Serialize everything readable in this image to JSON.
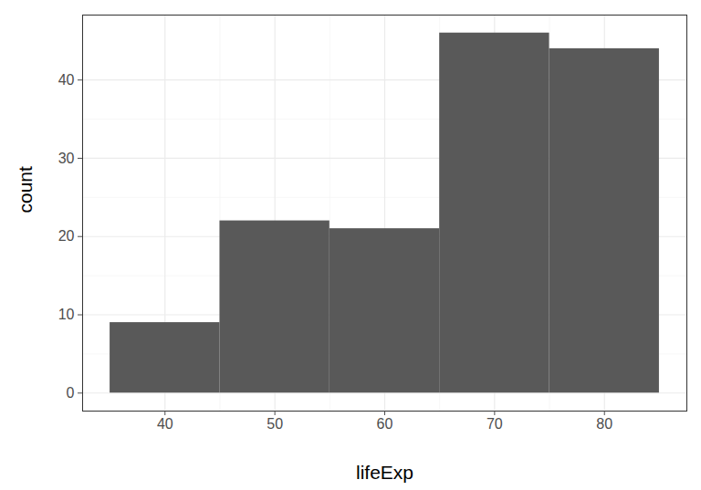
{
  "chart_data": {
    "type": "histogram",
    "bins": [
      35,
      45,
      55,
      65,
      75,
      85
    ],
    "values": [
      9,
      22,
      21,
      46,
      44
    ],
    "x_label": "lifeExp",
    "y_label": "count",
    "color": "#595959",
    "xlim": [
      32.5,
      87.5
    ],
    "xticks": [
      40,
      50,
      60,
      70,
      80
    ],
    "ylim": [
      -2.3,
      48.3
    ],
    "yticks": [
      0,
      10,
      20,
      30,
      40
    ],
    "grid": true
  }
}
